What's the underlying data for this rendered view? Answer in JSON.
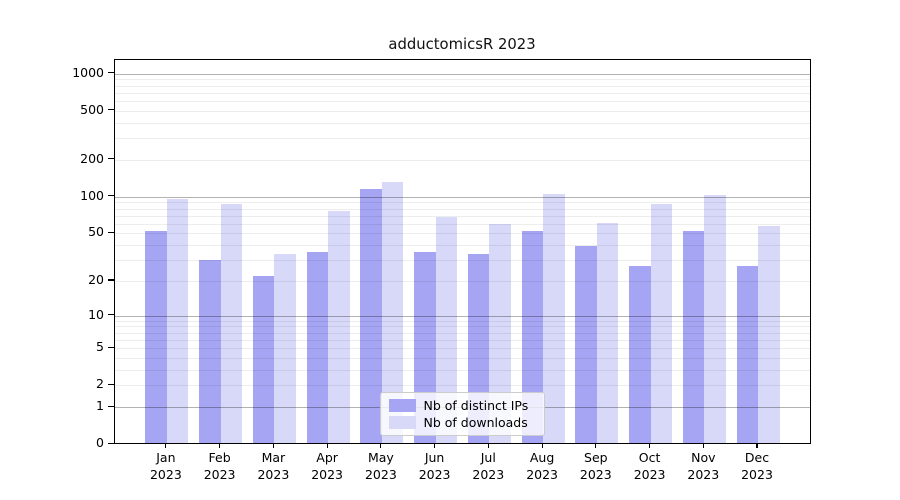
{
  "title": "adductomicsR 2023",
  "chart_data": {
    "type": "bar",
    "title": "adductomicsR 2023",
    "xlabel": "",
    "ylabel": "",
    "yscale": "log1p-symlog",
    "ylim": [
      0,
      1280
    ],
    "grid": "on",
    "legend_position": "lower center",
    "year_label": "2023",
    "categories": [
      "Jan",
      "Feb",
      "Mar",
      "Apr",
      "May",
      "Jun",
      "Jul",
      "Aug",
      "Sep",
      "Oct",
      "Nov",
      "Dec"
    ],
    "yticks": [
      0,
      1,
      2,
      5,
      10,
      20,
      50,
      100,
      200,
      500,
      1000
    ],
    "grid_major_ticks": [
      1,
      10,
      100,
      1000
    ],
    "series": [
      {
        "name": "Nb of distinct IPs",
        "color": "#a5a5f3",
        "values": [
          52,
          30,
          22,
          35,
          115,
          35,
          34,
          52,
          39,
          27,
          52,
          27
        ]
      },
      {
        "name": "Nb of downloads",
        "color": "#d8d8f9",
        "values": [
          95,
          87,
          34,
          77,
          131,
          68,
          60,
          106,
          61,
          87,
          103,
          57
        ]
      }
    ],
    "colors": {
      "background": "#ffffff",
      "axis": "#000000",
      "grid_major": "#b3b3b3",
      "grid_minor": "#ededed"
    }
  }
}
